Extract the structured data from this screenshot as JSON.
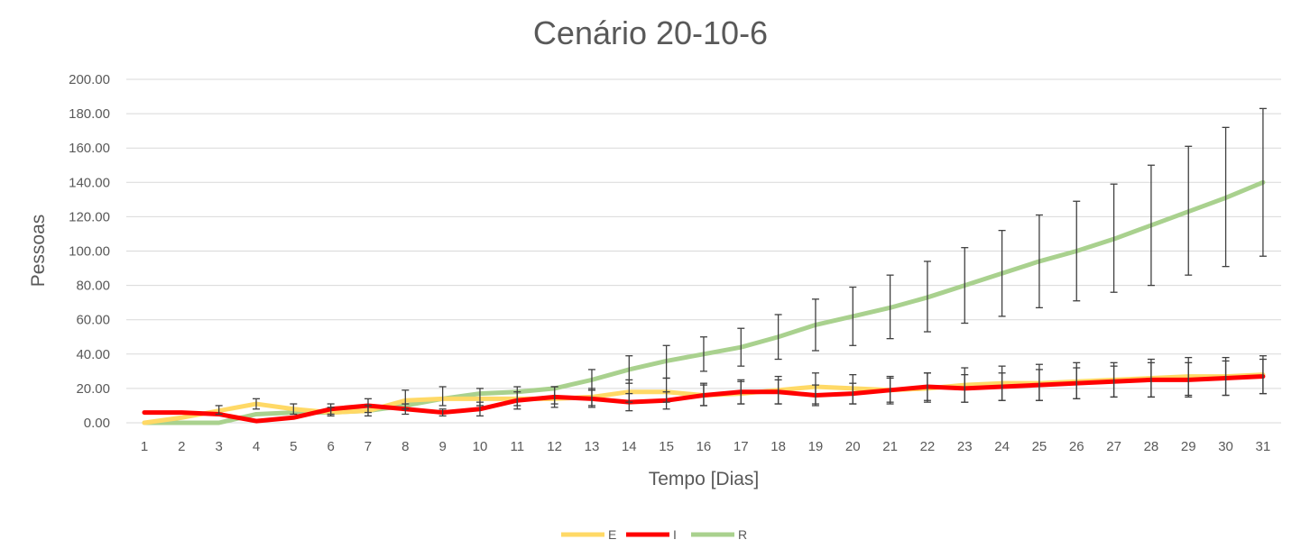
{
  "chart_data": {
    "type": "line",
    "title": "Cenário 20-10-6",
    "xlabel": "Tempo [Dias]",
    "ylabel": "Pessoas",
    "ylim": [
      0,
      200
    ],
    "yticks": [
      "0.00",
      "20.00",
      "40.00",
      "60.00",
      "80.00",
      "100.00",
      "120.00",
      "140.00",
      "160.00",
      "180.00",
      "200.00"
    ],
    "categories": [
      "1",
      "2",
      "3",
      "4",
      "5",
      "6",
      "7",
      "8",
      "9",
      "10",
      "11",
      "12",
      "13",
      "14",
      "15",
      "16",
      "17",
      "18",
      "19",
      "20",
      "21",
      "22",
      "23",
      "24",
      "25",
      "26",
      "27",
      "28",
      "29",
      "30",
      "31"
    ],
    "grid": true,
    "legend_position": "bottom",
    "series": [
      {
        "name": "E",
        "color": "#ffd966",
        "values": [
          0,
          3,
          7,
          11,
          8,
          6,
          7,
          13,
          14,
          14,
          14,
          14,
          15,
          18,
          18,
          16,
          17,
          19,
          21,
          20,
          19,
          20,
          22,
          23,
          23,
          24,
          25,
          26,
          27,
          27,
          28
        ],
        "err_low": [
          0,
          0,
          2,
          3,
          3,
          2,
          3,
          5,
          4,
          4,
          4,
          3,
          5,
          6,
          6,
          6,
          6,
          8,
          10,
          9,
          8,
          8,
          10,
          10,
          10,
          10,
          10,
          11,
          11,
          11,
          11
        ],
        "err_high": [
          0,
          0,
          3,
          3,
          3,
          3,
          3,
          6,
          7,
          6,
          7,
          7,
          5,
          7,
          8,
          7,
          7,
          8,
          8,
          8,
          8,
          9,
          10,
          10,
          11,
          11,
          10,
          11,
          11,
          11,
          11
        ]
      },
      {
        "name": "I",
        "color": "#ff0000",
        "values": [
          6,
          6,
          5,
          1,
          3,
          8,
          10,
          8,
          6,
          8,
          13,
          15,
          14,
          12,
          13,
          16,
          18,
          18,
          16,
          17,
          19,
          21,
          20,
          21,
          22,
          23,
          24,
          25,
          25,
          26,
          27
        ],
        "err_low": [
          0,
          0,
          0,
          0,
          0,
          3,
          4,
          3,
          2,
          4,
          5,
          6,
          5,
          5,
          5,
          6,
          7,
          7,
          6,
          6,
          7,
          8,
          8,
          8,
          9,
          9,
          9,
          10,
          10,
          10,
          10
        ],
        "err_high": [
          0,
          0,
          0,
          0,
          0,
          3,
          4,
          3,
          2,
          4,
          5,
          6,
          5,
          5,
          5,
          6,
          7,
          7,
          6,
          6,
          7,
          8,
          8,
          8,
          9,
          9,
          9,
          10,
          10,
          10,
          10
        ]
      },
      {
        "name": "R",
        "color": "#a9d18e",
        "values": [
          0,
          0,
          0,
          5,
          6,
          6,
          7,
          10,
          14,
          17,
          18,
          20,
          25,
          31,
          36,
          40,
          44,
          50,
          57,
          62,
          67,
          73,
          80,
          87,
          94,
          100,
          107,
          115,
          123,
          131,
          140
        ],
        "err_low": [
          0,
          0,
          0,
          0,
          0,
          0,
          0,
          0,
          0,
          0,
          0,
          0,
          6,
          8,
          10,
          10,
          11,
          13,
          15,
          17,
          18,
          20,
          22,
          25,
          27,
          29,
          31,
          35,
          37,
          40,
          43
        ],
        "err_high": [
          0,
          0,
          0,
          0,
          0,
          0,
          0,
          0,
          0,
          0,
          0,
          0,
          6,
          8,
          9,
          10,
          11,
          13,
          15,
          17,
          19,
          21,
          22,
          25,
          27,
          29,
          32,
          35,
          38,
          41,
          43
        ]
      }
    ]
  }
}
